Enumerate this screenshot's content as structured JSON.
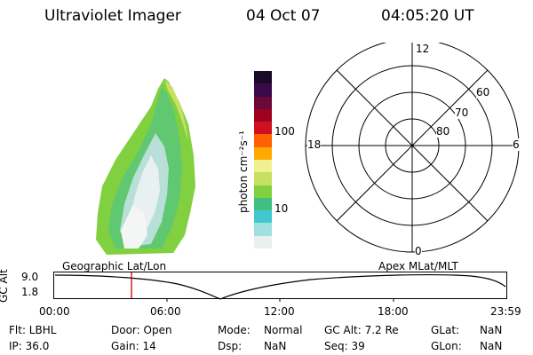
{
  "header": {
    "title": "Ultraviolet Imager",
    "date": "04 Oct 07",
    "time": "04:05:20 UT"
  },
  "colorbar": {
    "unit_label": "photon cm⁻²s⁻¹",
    "ticks": [
      "100",
      "10"
    ],
    "colors": [
      "#1a0a2a",
      "#3a0a4a",
      "#6a0a3a",
      "#a00020",
      "#d01020",
      "#ff6000",
      "#ffaa00",
      "#f0f090",
      "#c8e060",
      "#80d040",
      "#40c080",
      "#40c8d0",
      "#a0e0e0",
      "#e8f0f0"
    ]
  },
  "polar_plot": {
    "mlt_labels": {
      "top": "12",
      "left": "18",
      "right": "6",
      "bottom": "0"
    },
    "lat_labels": [
      "60",
      "70",
      "80"
    ]
  },
  "altitude_plot": {
    "ylabel": "GC Alt",
    "yticks": [
      "9.0",
      "1.8"
    ],
    "left_caption": "Geographic Lat/Lon",
    "right_caption": "Apex  MLat/MLT",
    "xticks": [
      "00:00",
      "06:00",
      "12:00",
      "18:00",
      "23:59"
    ]
  },
  "info": {
    "flt": "Flt: LBHL",
    "ip": "IP: 36.0",
    "door": "Door: Open",
    "gain": "Gain: 14",
    "mode_label": "Mode:",
    "mode_value": "Normal",
    "dsp_label": "Dsp:",
    "dsp_value": "NaN",
    "gcalt": "GC Alt: 7.2 Re",
    "seq": "Seq: 39",
    "glat_label": "GLat:",
    "glat_value": "NaN",
    "glon_label": "GLon:",
    "glon_value": "NaN"
  }
}
